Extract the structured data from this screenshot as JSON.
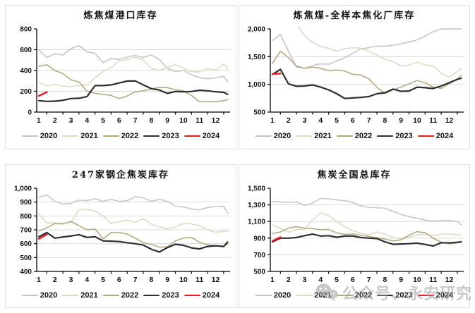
{
  "watermark": {
    "icon": "wechat-icon",
    "text": "公众号、永安研究"
  },
  "chart_data": [
    {
      "type": "line",
      "title": "炼焦煤港口库存",
      "xlabel": "",
      "ylabel": "",
      "grid": "horizontal",
      "legend_position": "bottom",
      "x": [
        1,
        1.5,
        2,
        2.5,
        3,
        3.5,
        4,
        4.5,
        5,
        5.5,
        6,
        6.5,
        7,
        7.5,
        8,
        8.5,
        9,
        9.5,
        10,
        10.5,
        11,
        11.5,
        12,
        12.5,
        12.75
      ],
      "xtick_labels": [
        "1",
        "2",
        "3",
        "4",
        "5",
        "6",
        "7",
        "8",
        "9",
        "10",
        "11",
        "12"
      ],
      "ylim": [
        0,
        800
      ],
      "ytick_values": [
        800,
        600,
        400,
        200,
        0
      ],
      "ytick_labels": [
        "800",
        "600",
        "400",
        "200",
        "0"
      ],
      "series": [
        {
          "name": "2020",
          "color": "#c4c4c8",
          "width": 1.5,
          "values": [
            600,
            525,
            560,
            550,
            610,
            640,
            580,
            565,
            475,
            515,
            505,
            530,
            545,
            525,
            550,
            505,
            420,
            390,
            400,
            360,
            330,
            320,
            330,
            345,
            290
          ]
        },
        {
          "name": "2021",
          "color": "#ded8c2",
          "width": 1.5,
          "values": [
            285,
            255,
            265,
            250,
            245,
            255,
            260,
            330,
            390,
            430,
            490,
            505,
            530,
            500,
            420,
            400,
            430,
            455,
            420,
            390,
            385,
            420,
            400,
            465,
            415
          ]
        },
        {
          "name": "2022",
          "color": "#b2a67c",
          "width": 1.5,
          "values": [
            440,
            455,
            400,
            370,
            310,
            290,
            200,
            180,
            170,
            160,
            130,
            155,
            195,
            205,
            225,
            235,
            235,
            215,
            205,
            160,
            100,
            100,
            100,
            110,
            120
          ]
        },
        {
          "name": "2023",
          "color": "#2e2e32",
          "width": 2.2,
          "values": [
            110,
            103,
            105,
            113,
            130,
            133,
            150,
            255,
            255,
            262,
            280,
            298,
            300,
            262,
            225,
            212,
            180,
            198,
            195,
            198,
            210,
            205,
            195,
            190,
            170
          ]
        },
        {
          "name": "2024",
          "color": "#e8191d",
          "width": 2.4,
          "values": [
            155,
            193
          ]
        }
      ]
    },
    {
      "type": "line",
      "title": "炼焦煤-全样本焦化厂库存",
      "xlabel": "",
      "ylabel": "",
      "grid": "horizontal",
      "legend_position": "bottom",
      "x": [
        1,
        1.5,
        2,
        2.5,
        3,
        3.5,
        4,
        4.5,
        5,
        5.5,
        6,
        6.5,
        7,
        7.5,
        8,
        8.5,
        9,
        9.5,
        10,
        10.5,
        11,
        11.5,
        12,
        12.5,
        12.75
      ],
      "xtick_labels": [
        "1",
        "2",
        "3",
        "4",
        "5",
        "6",
        "7",
        "8",
        "9",
        "10",
        "11",
        "12"
      ],
      "ylim": [
        500,
        2000
      ],
      "ytick_values": [
        2000,
        1500,
        1000,
        500
      ],
      "ytick_labels": [
        "2,000",
        "1,500",
        "1,000",
        "500"
      ],
      "series": [
        {
          "name": "2020",
          "color": "#c4c4c8",
          "width": 1.5,
          "values": [
            1790,
            1900,
            1600,
            1310,
            1290,
            1340,
            1370,
            1360,
            1420,
            1480,
            1560,
            1640,
            1660,
            1690,
            1690,
            1705,
            1730,
            1765,
            1800,
            1870,
            1950,
            2000,
            2000,
            2000,
            2000
          ]
        },
        {
          "name": "2021",
          "color": "#ded8c2",
          "width": 1.5,
          "values": [
            2350,
            2400,
            2300,
            2100,
            1880,
            1760,
            1680,
            1650,
            1600,
            1640,
            1660,
            1650,
            1600,
            1530,
            1450,
            1410,
            1330,
            1350,
            1400,
            1350,
            1330,
            1200,
            1130,
            1230,
            1290
          ]
        },
        {
          "name": "2022",
          "color": "#b2a67c",
          "width": 1.5,
          "values": [
            1380,
            1600,
            1480,
            1330,
            1290,
            1310,
            1290,
            1245,
            1260,
            1240,
            1180,
            1170,
            1100,
            950,
            830,
            900,
            950,
            1010,
            1070,
            1030,
            950,
            930,
            1010,
            1100,
            1160
          ]
        },
        {
          "name": "2023",
          "color": "#2e2e32",
          "width": 2.2,
          "values": [
            1180,
            1270,
            1010,
            965,
            970,
            990,
            950,
            900,
            830,
            745,
            755,
            765,
            780,
            830,
            850,
            915,
            875,
            880,
            950,
            940,
            925,
            970,
            1030,
            1090,
            1110
          ]
        },
        {
          "name": "2024",
          "color": "#e8191d",
          "width": 2.4,
          "values": [
            1185,
            1195
          ]
        }
      ]
    },
    {
      "type": "line",
      "title": "247家钢企焦炭库存",
      "xlabel": "",
      "ylabel": "",
      "grid": "horizontal",
      "legend_position": "bottom",
      "x": [
        1,
        1.5,
        2,
        2.5,
        3,
        3.5,
        4,
        4.5,
        5,
        5.5,
        6,
        6.5,
        7,
        7.5,
        8,
        8.5,
        9,
        9.5,
        10,
        10.5,
        11,
        11.5,
        12,
        12.5,
        12.75
      ],
      "xtick_labels": [
        "1",
        "2",
        "3",
        "4",
        "5",
        "6",
        "7",
        "8",
        "9",
        "10",
        "11",
        "12"
      ],
      "ylim": [
        400,
        1000
      ],
      "ytick_values": [
        1000,
        900,
        800,
        700,
        600,
        500,
        400
      ],
      "ytick_labels": [
        "1,000",
        "900",
        "800",
        "700",
        "600",
        "500",
        "400"
      ],
      "series": [
        {
          "name": "2020",
          "color": "#c4c4c8",
          "width": 1.5,
          "values": [
            935,
            950,
            905,
            885,
            890,
            915,
            910,
            925,
            905,
            920,
            905,
            910,
            940,
            930,
            905,
            920,
            905,
            870,
            865,
            850,
            845,
            860,
            870,
            870,
            820
          ]
        },
        {
          "name": "2021",
          "color": "#ded8c2",
          "width": 1.5,
          "values": [
            815,
            750,
            750,
            748,
            755,
            845,
            850,
            835,
            800,
            745,
            760,
            770,
            755,
            780,
            740,
            722,
            705,
            722,
            745,
            742,
            730,
            698,
            682,
            688,
            690
          ]
        },
        {
          "name": "2022",
          "color": "#b2a67c",
          "width": 1.5,
          "values": [
            690,
            715,
            745,
            742,
            760,
            730,
            700,
            705,
            635,
            680,
            680,
            670,
            640,
            608,
            595,
            575,
            577,
            620,
            640,
            645,
            610,
            592,
            585,
            580,
            600
          ]
        },
        {
          "name": "2023",
          "color": "#2e2e32",
          "width": 2.2,
          "values": [
            650,
            680,
            640,
            648,
            655,
            665,
            645,
            650,
            620,
            618,
            615,
            607,
            600,
            590,
            560,
            540,
            572,
            596,
            588,
            570,
            562,
            580,
            585,
            580,
            612
          ]
        },
        {
          "name": "2024",
          "color": "#e8191d",
          "width": 2.4,
          "values": [
            635,
            668
          ]
        }
      ]
    },
    {
      "type": "line",
      "title": "焦炭全国总库存",
      "xlabel": "",
      "ylabel": "",
      "grid": "horizontal",
      "legend_position": "bottom",
      "x": [
        1,
        1.5,
        2,
        2.5,
        3,
        3.5,
        4,
        4.5,
        5,
        5.5,
        6,
        6.5,
        7,
        7.5,
        8,
        8.5,
        9,
        9.5,
        10,
        10.5,
        11,
        11.5,
        12,
        12.5,
        12.75
      ],
      "xtick_labels": [
        "1",
        "2",
        "3",
        "4",
        "5",
        "6",
        "7",
        "8",
        "9",
        "10",
        "11",
        "12"
      ],
      "ylim": [
        500,
        1500
      ],
      "ytick_values": [
        1500,
        1300,
        1100,
        900,
        700,
        500
      ],
      "ytick_labels": [
        "1,500",
        "1,300",
        "1,100",
        "900",
        "700",
        "500"
      ],
      "series": [
        {
          "name": "2020",
          "color": "#c4c4c8",
          "width": 1.5,
          "values": [
            1340,
            1335,
            1330,
            1335,
            1295,
            1320,
            1378,
            1372,
            1360,
            1350,
            1330,
            1288,
            1270,
            1265,
            1260,
            1222,
            1185,
            1158,
            1140,
            1118,
            1105,
            1110,
            1110,
            1100,
            1062
          ]
        },
        {
          "name": "2021",
          "color": "#ded8c2",
          "width": 1.5,
          "values": [
            1060,
            1015,
            972,
            1005,
            1005,
            1120,
            1205,
            1170,
            1100,
            1035,
            990,
            958,
            940,
            975,
            950,
            910,
            890,
            910,
            940,
            945,
            930,
            948,
            950,
            941,
            940
          ]
        },
        {
          "name": "2022",
          "color": "#b2a67c",
          "width": 1.5,
          "values": [
            955,
            975,
            1020,
            1038,
            1020,
            1015,
            1000,
            1005,
            962,
            945,
            950,
            935,
            920,
            905,
            888,
            866,
            880,
            935,
            978,
            965,
            900,
            850,
            832,
            842,
            860
          ]
        },
        {
          "name": "2023",
          "color": "#2e2e32",
          "width": 2.2,
          "values": [
            855,
            900,
            900,
            908,
            930,
            948,
            925,
            930,
            910,
            925,
            925,
            908,
            900,
            895,
            855,
            826,
            830,
            833,
            840,
            825,
            805,
            845,
            842,
            850,
            855
          ]
        },
        {
          "name": "2024",
          "color": "#e8191d",
          "width": 2.4,
          "values": [
            865,
            912
          ]
        }
      ]
    }
  ]
}
